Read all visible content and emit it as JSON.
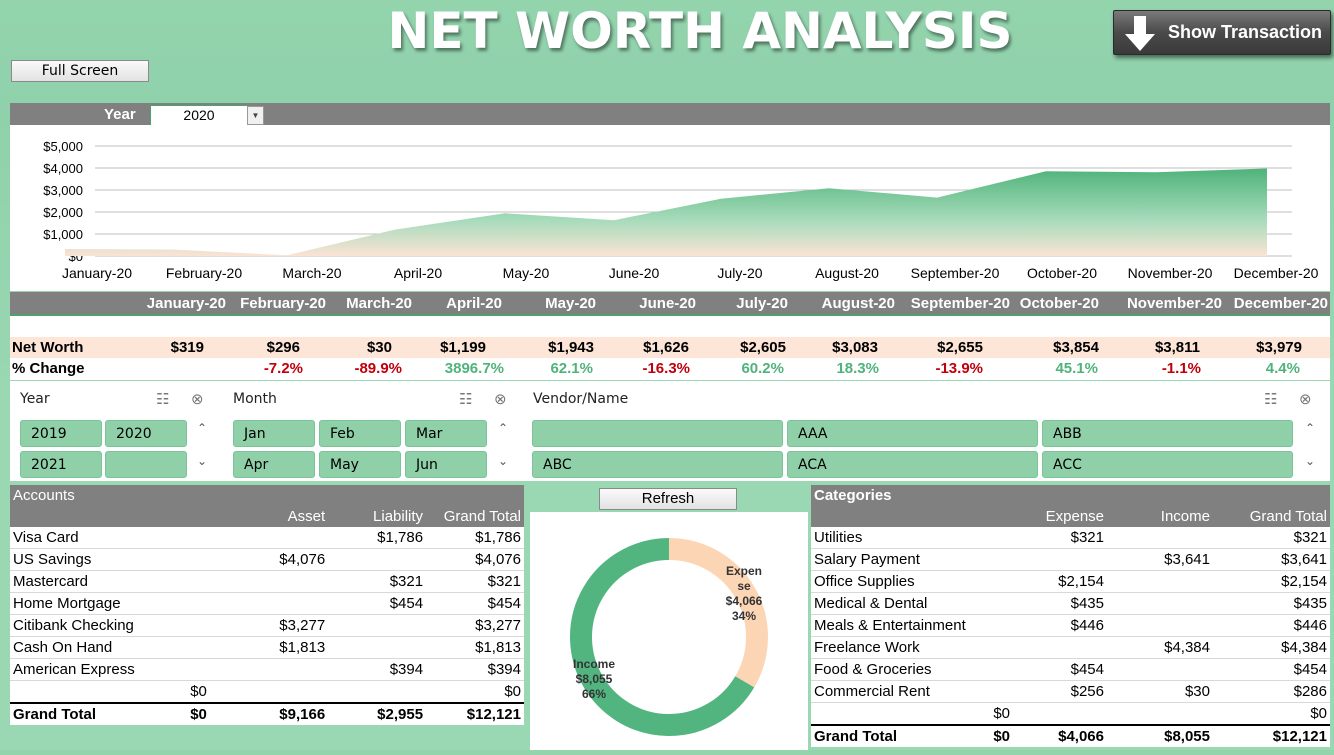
{
  "title": "NET WORTH ANALYSIS",
  "buttons": {
    "show_transaction": "Show Transaction",
    "full_screen": "Full Screen",
    "refresh": "Refresh"
  },
  "year_filter": {
    "label": "Year",
    "value": "2020"
  },
  "colors": {
    "accent": "#4fb37a",
    "header_gray": "#808080",
    "negative": "#c0000b",
    "expense": "#fcd5b4",
    "income": "#52b57f"
  },
  "chart_data": {
    "type": "area",
    "categories": [
      "January-20",
      "February-20",
      "March-20",
      "April-20",
      "May-20",
      "June-20",
      "July-20",
      "August-20",
      "September-20",
      "October-20",
      "November-20",
      "December-20"
    ],
    "values": [
      319,
      296,
      30,
      1199,
      1943,
      1626,
      2605,
      3083,
      2655,
      3854,
      3811,
      3979
    ],
    "y_ticks": [
      "$0",
      "$1,000",
      "$2,000",
      "$3,000",
      "$4,000",
      "$5,000"
    ],
    "ylim": [
      0,
      5000
    ],
    "grid": true
  },
  "summary": {
    "months": [
      "January-20",
      "February-20",
      "March-20",
      "April-20",
      "May-20",
      "June-20",
      "July-20",
      "August-20",
      "September-20",
      "October-20",
      "November-20",
      "December-20"
    ],
    "net_worth_label": "Net Worth",
    "net_worth": [
      "$319",
      "$296",
      "$30",
      "$1,199",
      "$1,943",
      "$1,626",
      "$2,605",
      "$3,083",
      "$2,655",
      "$3,854",
      "$3,811",
      "$3,979"
    ],
    "change_label": "% Change",
    "change": [
      "",
      "-7.2%",
      "-89.9%",
      "3896.7%",
      "62.1%",
      "-16.3%",
      "60.2%",
      "18.3%",
      "-13.9%",
      "45.1%",
      "-1.1%",
      "4.4%"
    ]
  },
  "slicers": {
    "year": {
      "label": "Year",
      "items": [
        "2019",
        "2020",
        "2021",
        ""
      ]
    },
    "month": {
      "label": "Month",
      "items": [
        "Jan",
        "Feb",
        "Mar",
        "Apr",
        "May",
        "Jun"
      ]
    },
    "vendor": {
      "label": "Vendor/Name",
      "items": [
        "",
        "AAA",
        "ABB",
        "ABC",
        "ACA",
        "ACC"
      ]
    }
  },
  "accounts": {
    "title": "Accounts",
    "columns": [
      "Asset",
      "Liability",
      "Grand Total"
    ],
    "rows": [
      {
        "name": "Visa Card",
        "c0": "",
        "asset": "",
        "liability": "$1,786",
        "total": "$1,786"
      },
      {
        "name": "US Savings",
        "c0": "",
        "asset": "$4,076",
        "liability": "",
        "total": "$4,076"
      },
      {
        "name": "Mastercard",
        "c0": "",
        "asset": "",
        "liability": "$321",
        "total": "$321"
      },
      {
        "name": "Home Mortgage",
        "c0": "",
        "asset": "",
        "liability": "$454",
        "total": "$454"
      },
      {
        "name": "Citibank Checking",
        "c0": "",
        "asset": "$3,277",
        "liability": "",
        "total": "$3,277"
      },
      {
        "name": "Cash On Hand",
        "c0": "",
        "asset": "$1,813",
        "liability": "",
        "total": "$1,813"
      },
      {
        "name": "American Express",
        "c0": "",
        "asset": "",
        "liability": "$394",
        "total": "$394"
      },
      {
        "name": "",
        "c0": "$0",
        "asset": "",
        "liability": "",
        "total": "$0"
      }
    ],
    "grand_total": {
      "name": "Grand Total",
      "c0": "$0",
      "asset": "$9,166",
      "liability": "$2,955",
      "total": "$12,121"
    }
  },
  "donut": {
    "expense": {
      "label1": "Expen",
      "label2": "se",
      "value": "$4,066",
      "pct": "34%",
      "fraction": 0.335
    },
    "income": {
      "label1": "Income",
      "value": "$8,055",
      "pct": "66%",
      "fraction": 0.665
    }
  },
  "categories": {
    "title": "Categories",
    "columns": [
      "Expense",
      "Income",
      "Grand Total"
    ],
    "rows": [
      {
        "name": "Utilities",
        "c0": "",
        "expense": "$321",
        "income": "",
        "total": "$321"
      },
      {
        "name": "Salary Payment",
        "c0": "",
        "expense": "",
        "income": "$3,641",
        "total": "$3,641"
      },
      {
        "name": "Office Supplies",
        "c0": "",
        "expense": "$2,154",
        "income": "",
        "total": "$2,154"
      },
      {
        "name": "Medical & Dental",
        "c0": "",
        "expense": "$435",
        "income": "",
        "total": "$435"
      },
      {
        "name": "Meals & Entertainment",
        "c0": "",
        "expense": "$446",
        "income": "",
        "total": "$446"
      },
      {
        "name": "Freelance Work",
        "c0": "",
        "expense": "",
        "income": "$4,384",
        "total": "$4,384"
      },
      {
        "name": "Food & Groceries",
        "c0": "",
        "expense": "$454",
        "income": "",
        "total": "$454"
      },
      {
        "name": "Commercial Rent",
        "c0": "",
        "expense": "$256",
        "income": "$30",
        "total": "$286"
      },
      {
        "name": "",
        "c0": "$0",
        "expense": "",
        "income": "",
        "total": "$0"
      }
    ],
    "grand_total": {
      "name": "Grand Total",
      "c0": "$0",
      "expense": "$4,066",
      "income": "$8,055",
      "total": "$12,121"
    }
  }
}
